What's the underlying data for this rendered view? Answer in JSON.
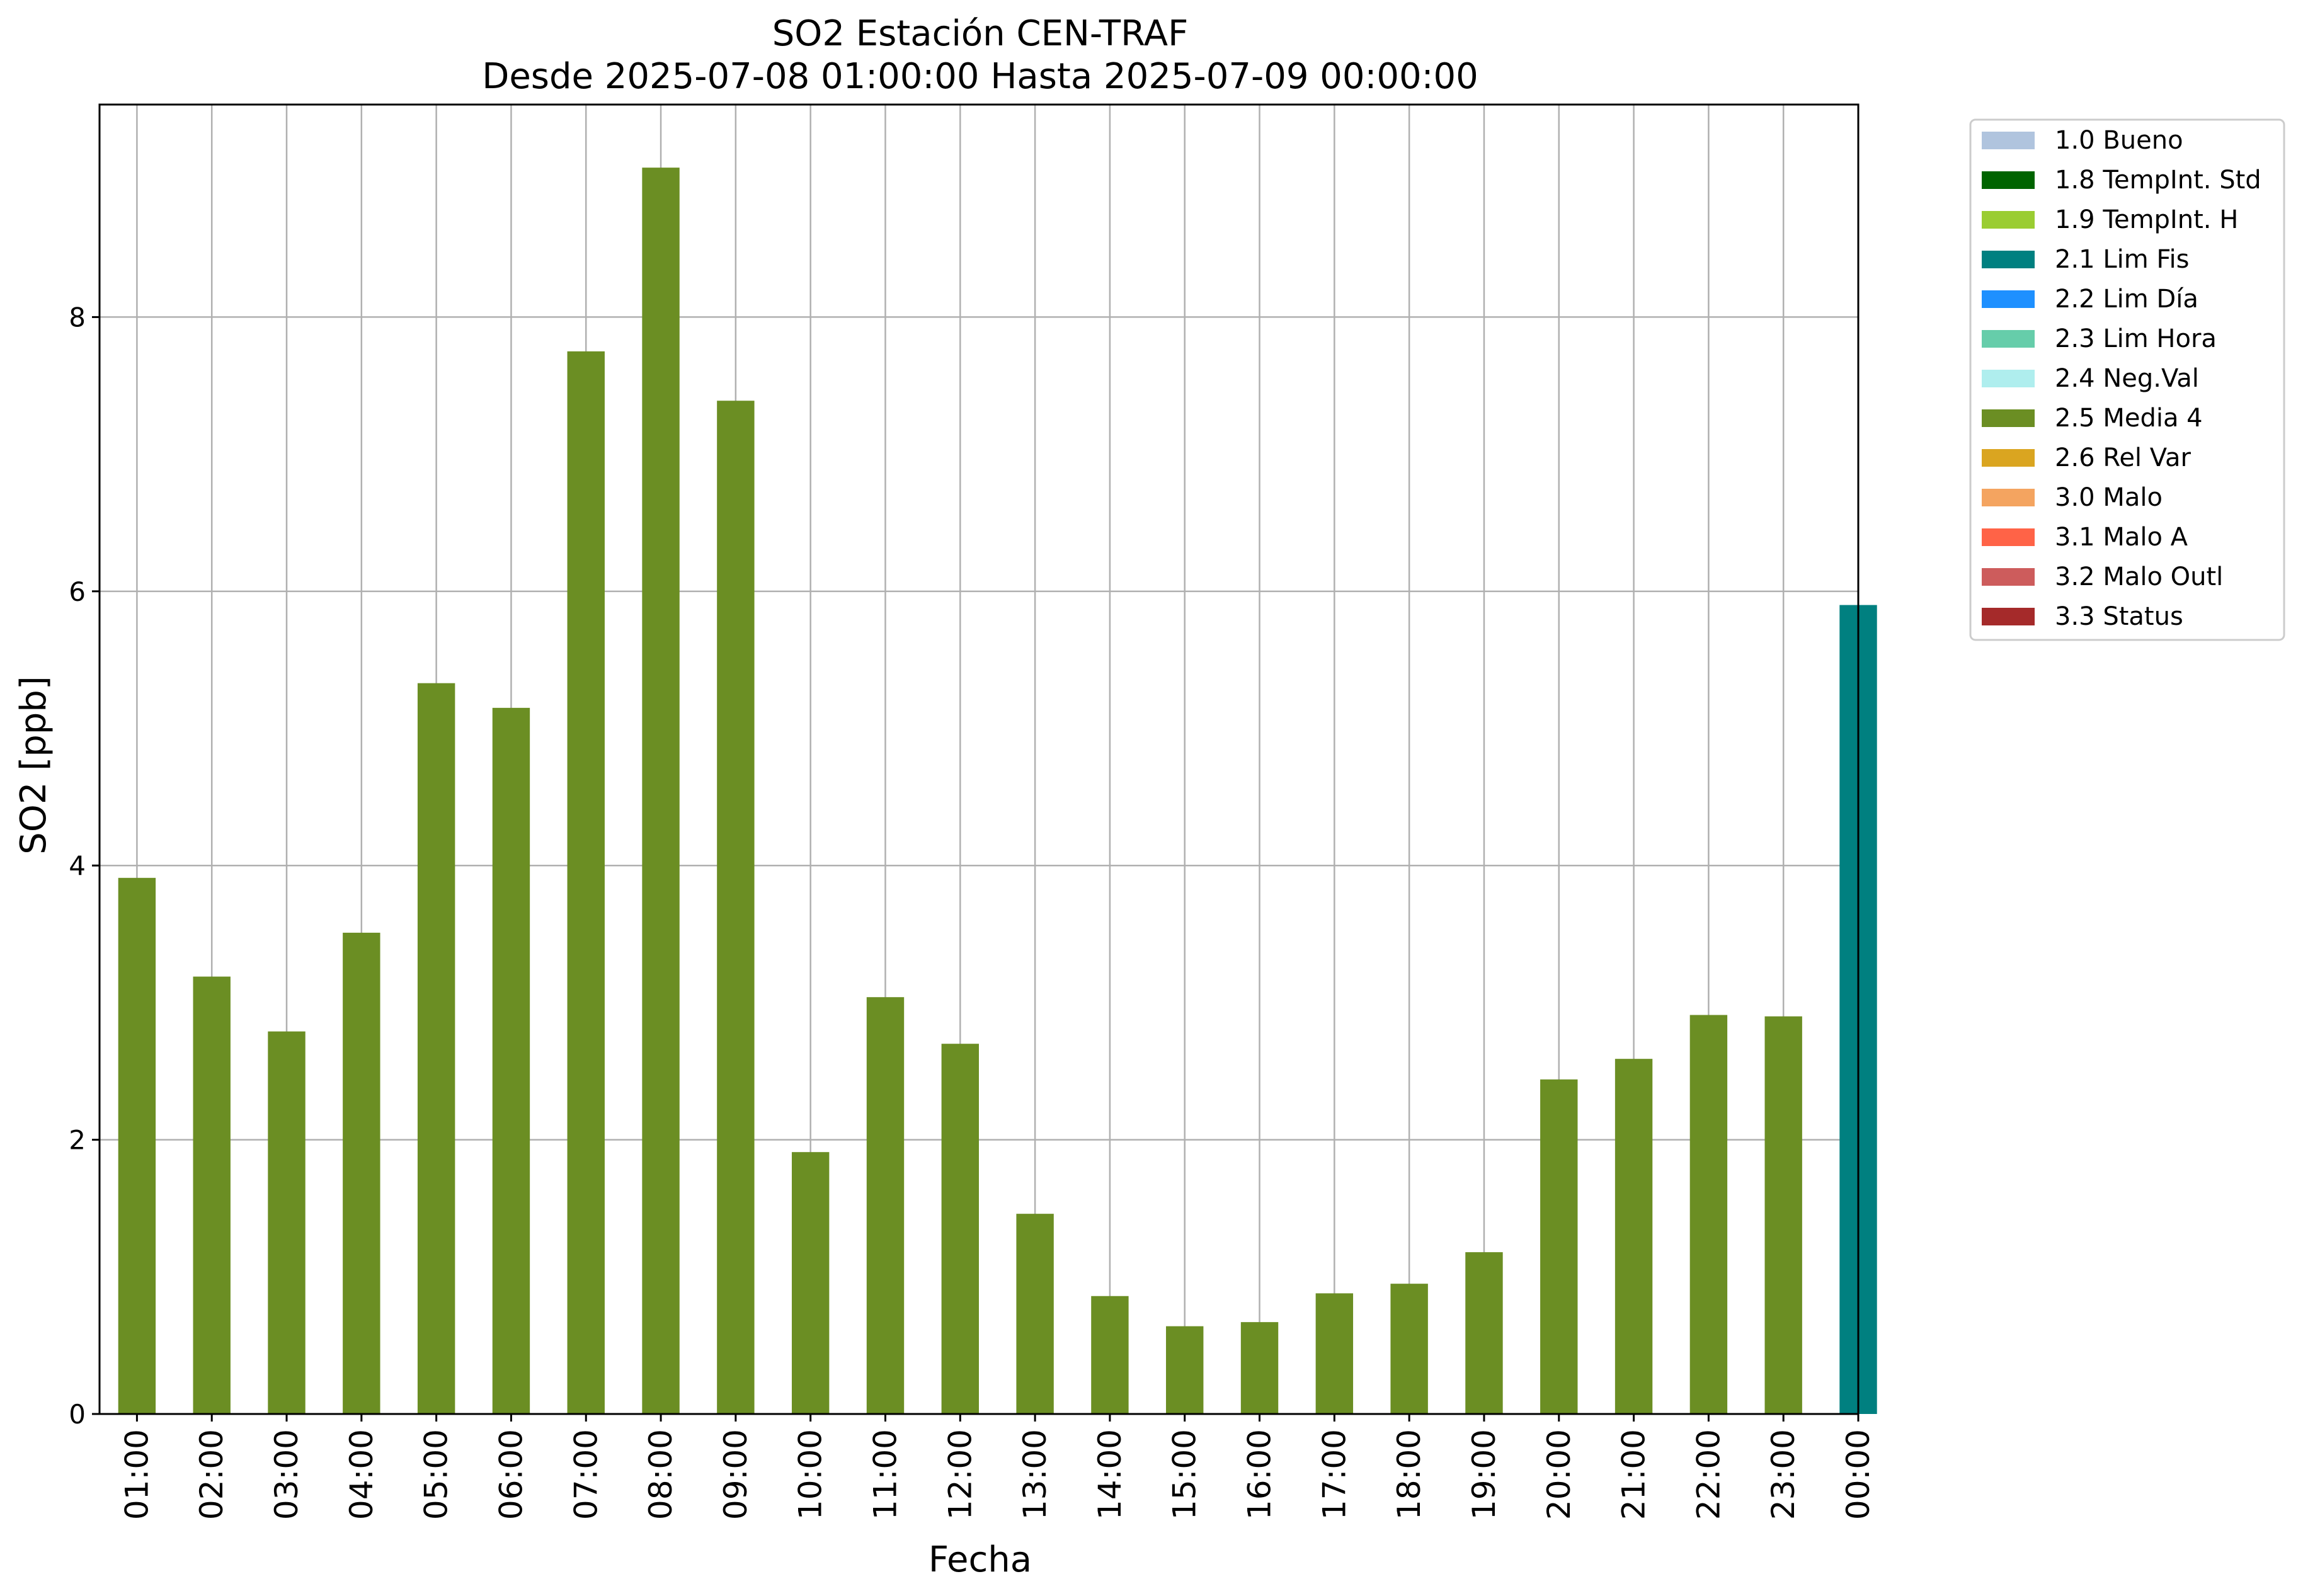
{
  "chart_data": {
    "type": "bar",
    "title": "SO2 Estación CEN-TRAF",
    "subtitle": "Desde 2025-07-08 01:00:00 Hasta 2025-07-09 00:00:00",
    "xlabel": "Fecha",
    "ylabel": "SO2 [ppb]",
    "ylim": [
      0,
      9.55
    ],
    "yticks": [
      "0",
      "2",
      "4",
      "6",
      "8"
    ],
    "grid": true,
    "legend_position": "outside-right-top",
    "categories": [
      "01:00",
      "02:00",
      "03:00",
      "04:00",
      "05:00",
      "06:00",
      "07:00",
      "08:00",
      "09:00",
      "10:00",
      "11:00",
      "12:00",
      "13:00",
      "14:00",
      "15:00",
      "16:00",
      "17:00",
      "18:00",
      "19:00",
      "20:00",
      "21:00",
      "22:00",
      "23:00",
      "00:00"
    ],
    "values": [
      3.91,
      3.19,
      2.79,
      3.51,
      5.33,
      5.15,
      7.75,
      9.09,
      7.39,
      1.91,
      3.04,
      2.7,
      1.46,
      0.86,
      0.64,
      0.67,
      0.88,
      0.95,
      1.18,
      2.44,
      2.59,
      2.91,
      2.9,
      5.9
    ],
    "flags": [
      "2.5 Media 4",
      "2.5 Media 4",
      "2.5 Media 4",
      "2.5 Media 4",
      "2.5 Media 4",
      "2.5 Media 4",
      "2.5 Media 4",
      "2.5 Media 4",
      "2.5 Media 4",
      "2.5 Media 4",
      "2.5 Media 4",
      "2.5 Media 4",
      "2.5 Media 4",
      "2.5 Media 4",
      "2.5 Media 4",
      "2.5 Media 4",
      "2.5 Media 4",
      "2.5 Media 4",
      "2.5 Media 4",
      "2.5 Media 4",
      "2.5 Media 4",
      "2.5 Media 4",
      "2.5 Media 4",
      "2.1 Lim Fis"
    ],
    "legend": [
      {
        "label": "1.0 Bueno",
        "color": "#b0c4de"
      },
      {
        "label": "1.8 TempInt. Std",
        "color": "#006400"
      },
      {
        "label": "1.9 TempInt. H",
        "color": "#9acd32"
      },
      {
        "label": "2.1 Lim Fis",
        "color": "#008080"
      },
      {
        "label": "2.2 Lim Día",
        "color": "#1e90ff"
      },
      {
        "label": "2.3 Lim Hora",
        "color": "#66cdaa"
      },
      {
        "label": "2.4 Neg.Val",
        "color": "#afeeee"
      },
      {
        "label": "2.5 Media 4",
        "color": "#6b8e23"
      },
      {
        "label": "2.6 Rel Var",
        "color": "#daa520"
      },
      {
        "label": "3.0 Malo",
        "color": "#f4a460"
      },
      {
        "label": "3.1 Malo A",
        "color": "#ff6347"
      },
      {
        "label": "3.2 Malo Outl",
        "color": "#cd5c5c"
      },
      {
        "label": "3.3 Status",
        "color": "#a52a2a"
      }
    ]
  }
}
